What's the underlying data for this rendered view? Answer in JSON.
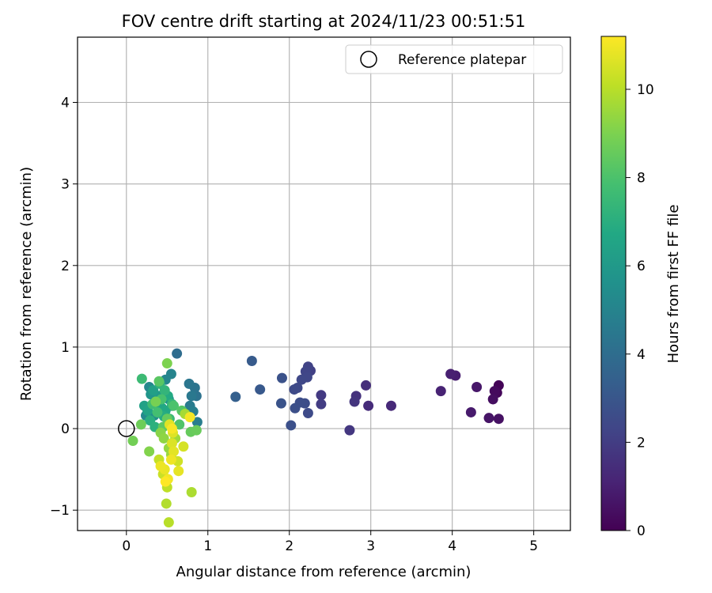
{
  "chart_data": {
    "type": "scatter",
    "title": "FOV centre drift starting at 2024/11/23 00:51:51",
    "xlabel": "Angular distance from reference (arcmin)",
    "ylabel": "Rotation from reference (arcmin)",
    "xlim": [
      -0.6,
      5.45
    ],
    "ylim": [
      -1.25,
      4.8
    ],
    "xticks": [
      0,
      1,
      2,
      3,
      4,
      5
    ],
    "xtick_labels": [
      "0",
      "1",
      "2",
      "3",
      "4",
      "5"
    ],
    "yticks": [
      -1,
      0,
      1,
      2,
      3,
      4
    ],
    "ytick_labels": [
      "−1",
      "0",
      "1",
      "2",
      "3",
      "4"
    ],
    "grid": true,
    "legend": {
      "location": "upper right",
      "entries": [
        "Reference platepar"
      ]
    },
    "reference_point": {
      "label": "Reference platepar",
      "x": 0,
      "y": 0,
      "marker": "open-circle"
    },
    "colorbar": {
      "label": "Hours from first FF file",
      "colormap": "viridis",
      "range": [
        0,
        11.2
      ],
      "ticks": [
        0,
        2,
        4,
        6,
        8,
        10
      ],
      "tick_labels": [
        "0",
        "2",
        "4",
        "6",
        "8",
        "10"
      ]
    },
    "points": [
      {
        "x": 4.57,
        "y": 0.53,
        "c": 0.1
      },
      {
        "x": 4.55,
        "y": 0.44,
        "c": 0.2
      },
      {
        "x": 4.52,
        "y": 0.46,
        "c": 0.3
      },
      {
        "x": 4.5,
        "y": 0.36,
        "c": 0.4
      },
      {
        "x": 4.57,
        "y": 0.12,
        "c": 0.5
      },
      {
        "x": 4.45,
        "y": 0.13,
        "c": 0.6
      },
      {
        "x": 4.3,
        "y": 0.51,
        "c": 0.7
      },
      {
        "x": 4.23,
        "y": 0.2,
        "c": 0.8
      },
      {
        "x": 4.04,
        "y": 0.65,
        "c": 0.9
      },
      {
        "x": 3.98,
        "y": 0.67,
        "c": 1.0
      },
      {
        "x": 3.86,
        "y": 0.46,
        "c": 1.1
      },
      {
        "x": 3.25,
        "y": 0.28,
        "c": 1.3
      },
      {
        "x": 2.97,
        "y": 0.28,
        "c": 1.4
      },
      {
        "x": 2.94,
        "y": 0.53,
        "c": 1.5
      },
      {
        "x": 2.82,
        "y": 0.4,
        "c": 1.6
      },
      {
        "x": 2.8,
        "y": 0.33,
        "c": 1.7
      },
      {
        "x": 2.74,
        "y": -0.02,
        "c": 1.8
      },
      {
        "x": 2.39,
        "y": 0.41,
        "c": 1.9
      },
      {
        "x": 2.39,
        "y": 0.3,
        "c": 2.0
      },
      {
        "x": 2.26,
        "y": 0.71,
        "c": 2.1
      },
      {
        "x": 2.23,
        "y": 0.76,
        "c": 2.2
      },
      {
        "x": 2.2,
        "y": 0.7,
        "c": 2.3
      },
      {
        "x": 2.22,
        "y": 0.63,
        "c": 2.35
      },
      {
        "x": 2.15,
        "y": 0.6,
        "c": 2.4
      },
      {
        "x": 2.1,
        "y": 0.5,
        "c": 2.45
      },
      {
        "x": 2.06,
        "y": 0.48,
        "c": 2.5
      },
      {
        "x": 2.23,
        "y": 0.19,
        "c": 2.55
      },
      {
        "x": 2.19,
        "y": 0.31,
        "c": 2.6
      },
      {
        "x": 2.13,
        "y": 0.32,
        "c": 2.65
      },
      {
        "x": 2.07,
        "y": 0.25,
        "c": 2.7
      },
      {
        "x": 2.02,
        "y": 0.04,
        "c": 2.75
      },
      {
        "x": 1.91,
        "y": 0.62,
        "c": 2.8
      },
      {
        "x": 1.9,
        "y": 0.31,
        "c": 2.85
      },
      {
        "x": 1.64,
        "y": 0.48,
        "c": 3.1
      },
      {
        "x": 1.54,
        "y": 0.83,
        "c": 3.2
      },
      {
        "x": 1.34,
        "y": 0.39,
        "c": 3.4
      },
      {
        "x": 0.62,
        "y": 0.92,
        "c": 4.0
      },
      {
        "x": 0.86,
        "y": 0.4,
        "c": 4.2
      },
      {
        "x": 0.84,
        "y": 0.5,
        "c": 4.3
      },
      {
        "x": 0.77,
        "y": 0.55,
        "c": 4.4
      },
      {
        "x": 0.8,
        "y": 0.4,
        "c": 4.5
      },
      {
        "x": 0.78,
        "y": 0.28,
        "c": 4.6
      },
      {
        "x": 0.87,
        "y": 0.08,
        "c": 4.7
      },
      {
        "x": 0.82,
        "y": 0.21,
        "c": 4.8
      },
      {
        "x": 0.55,
        "y": 0.67,
        "c": 5.0
      },
      {
        "x": 0.48,
        "y": 0.6,
        "c": 5.1
      },
      {
        "x": 0.28,
        "y": 0.51,
        "c": 5.2
      },
      {
        "x": 0.24,
        "y": 0.16,
        "c": 5.3
      },
      {
        "x": 0.34,
        "y": 0.16,
        "c": 5.4
      },
      {
        "x": 0.56,
        "y": 0.28,
        "c": 5.5
      },
      {
        "x": 0.52,
        "y": 0.36,
        "c": 5.6
      },
      {
        "x": 0.3,
        "y": 0.42,
        "c": 5.8
      },
      {
        "x": 0.4,
        "y": 0.4,
        "c": 6.0
      },
      {
        "x": 0.42,
        "y": 0.35,
        "c": 6.1
      },
      {
        "x": 0.36,
        "y": 0.3,
        "c": 6.2
      },
      {
        "x": 0.33,
        "y": 0.47,
        "c": 6.3
      },
      {
        "x": 0.22,
        "y": 0.28,
        "c": 6.4
      },
      {
        "x": 0.26,
        "y": 0.22,
        "c": 6.5
      },
      {
        "x": 0.44,
        "y": 0.25,
        "c": 6.6
      },
      {
        "x": 0.48,
        "y": 0.22,
        "c": 6.7
      },
      {
        "x": 0.51,
        "y": 0.4,
        "c": 6.8
      },
      {
        "x": 0.46,
        "y": 0.15,
        "c": 6.9
      },
      {
        "x": 0.29,
        "y": 0.1,
        "c": 7.0
      },
      {
        "x": 0.35,
        "y": 0.02,
        "c": 7.1
      },
      {
        "x": 0.41,
        "y": 0.55,
        "c": 7.2
      },
      {
        "x": 0.47,
        "y": 0.47,
        "c": 7.3
      },
      {
        "x": 0.56,
        "y": 0.3,
        "c": 7.4
      },
      {
        "x": 0.53,
        "y": 0.12,
        "c": 7.5
      },
      {
        "x": 0.19,
        "y": 0.61,
        "c": 7.6
      },
      {
        "x": 0.32,
        "y": 0.3,
        "c": 7.7
      },
      {
        "x": 0.38,
        "y": 0.2,
        "c": 7.8
      },
      {
        "x": 0.43,
        "y": 0.36,
        "c": 7.9
      },
      {
        "x": 0.58,
        "y": 0.28,
        "c": 8.0
      },
      {
        "x": 0.65,
        "y": 0.05,
        "c": 8.1
      },
      {
        "x": 0.68,
        "y": 0.22,
        "c": 8.2
      },
      {
        "x": 0.4,
        "y": 0.58,
        "c": 8.3
      },
      {
        "x": 0.45,
        "y": 0.02,
        "c": 8.4
      },
      {
        "x": 0.5,
        "y": 0.12,
        "c": 8.5
      },
      {
        "x": 0.79,
        "y": -0.04,
        "c": 8.55
      },
      {
        "x": 0.86,
        "y": -0.02,
        "c": 8.6
      },
      {
        "x": 0.18,
        "y": 0.05,
        "c": 8.7
      },
      {
        "x": 0.08,
        "y": -0.15,
        "c": 8.8
      },
      {
        "x": 0.36,
        "y": 0.33,
        "c": 8.9
      },
      {
        "x": 0.5,
        "y": 0.8,
        "c": 9.0
      },
      {
        "x": 0.28,
        "y": -0.28,
        "c": 9.1
      },
      {
        "x": 0.42,
        "y": -0.05,
        "c": 9.2
      },
      {
        "x": 0.46,
        "y": -0.12,
        "c": 9.3
      },
      {
        "x": 0.52,
        "y": -0.24,
        "c": 9.4
      },
      {
        "x": 0.55,
        "y": -0.32,
        "c": 9.5
      },
      {
        "x": 0.6,
        "y": -0.12,
        "c": 9.6
      },
      {
        "x": 0.72,
        "y": 0.18,
        "c": 9.7
      },
      {
        "x": 0.8,
        "y": -0.78,
        "c": 9.8
      },
      {
        "x": 0.49,
        "y": -0.92,
        "c": 9.9
      },
      {
        "x": 0.52,
        "y": -1.15,
        "c": 10.0
      },
      {
        "x": 0.5,
        "y": -0.72,
        "c": 10.1
      },
      {
        "x": 0.4,
        "y": -0.38,
        "c": 10.2
      },
      {
        "x": 0.45,
        "y": -0.56,
        "c": 10.3
      },
      {
        "x": 0.63,
        "y": -0.4,
        "c": 10.4
      },
      {
        "x": 0.7,
        "y": -0.22,
        "c": 10.5
      },
      {
        "x": 0.56,
        "y": -0.18,
        "c": 10.6
      },
      {
        "x": 0.57,
        "y": -0.05,
        "c": 10.65
      },
      {
        "x": 0.53,
        "y": 0.05,
        "c": 10.7
      },
      {
        "x": 0.58,
        "y": -0.28,
        "c": 10.75
      },
      {
        "x": 0.64,
        "y": -0.52,
        "c": 10.8
      },
      {
        "x": 0.47,
        "y": -0.5,
        "c": 10.85
      },
      {
        "x": 0.42,
        "y": -0.46,
        "c": 10.9
      },
      {
        "x": 0.55,
        "y": -0.38,
        "c": 10.95
      },
      {
        "x": 0.51,
        "y": -0.62,
        "c": 11.0
      },
      {
        "x": 0.78,
        "y": 0.14,
        "c": 11.05
      },
      {
        "x": 0.56,
        "y": 0.0,
        "c": 11.1
      },
      {
        "x": 0.48,
        "y": -0.65,
        "c": 11.2
      }
    ]
  }
}
